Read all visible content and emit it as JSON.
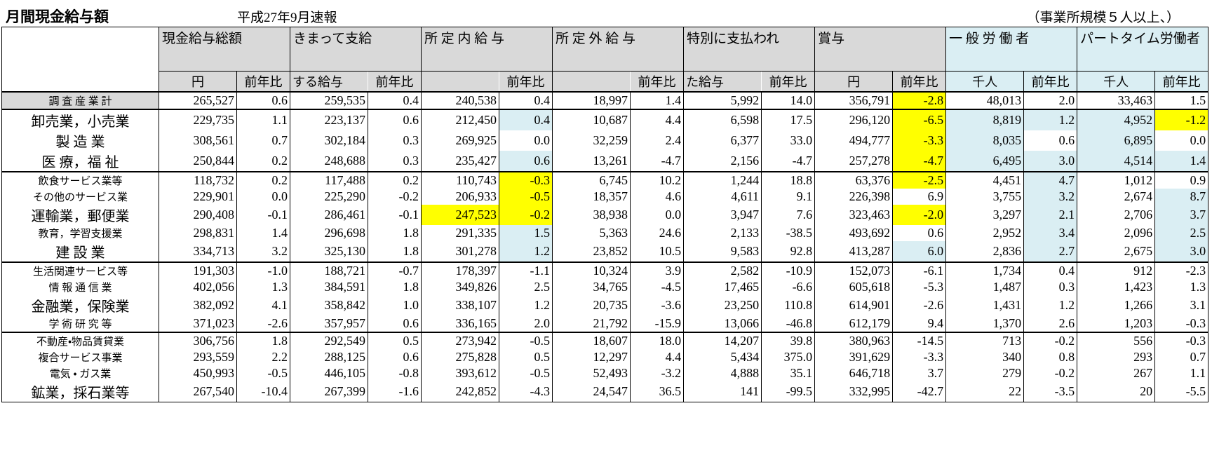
{
  "header": {
    "title": "月間現金給与額",
    "subtitle": "平成27年9月速報",
    "note": "（事業所規模５人以上、）"
  },
  "table": {
    "group_headers": [
      "現金給与総額",
      "きまって支給",
      "所 定 内 給 与",
      "所 定 外 給 与",
      "特別に支払われ",
      "賞与",
      "一 般 労 働 者",
      "パートタイム労働者"
    ],
    "group_colors": [
      "#d9d9d9",
      "#d9d9d9",
      "#d9d9d9",
      "#d9d9d9",
      "#d9d9d9",
      "#d9d9d9",
      "#daeef3",
      "#daeef3"
    ],
    "sub_headers": [
      "円",
      "前年比",
      "する給与",
      "前年比",
      null,
      "前年比",
      null,
      "前年比",
      "た給与",
      "前年比",
      "円",
      "前年比",
      "千人",
      "前年比",
      "千人",
      "前年比"
    ],
    "sections": [
      {
        "rows": [
          {
            "label": "調 査 産 業 計",
            "label_color": "#d9d9d9",
            "cells": [
              "265,527",
              "0.6",
              "259,535",
              "0.4",
              "240,538",
              "0.4",
              "18,997",
              "1.4",
              "5,992",
              "14.0",
              "356,791",
              "-2.8",
              "48,013",
              "2.0",
              "33,463",
              "1.5"
            ],
            "colors": {
              "11": "#ffff00"
            }
          }
        ]
      },
      {
        "rows": [
          {
            "label": "卸売業，小売業",
            "cells": [
              "229,735",
              "1.1",
              "223,137",
              "0.6",
              "212,450",
              "0.4",
              "10,687",
              "4.4",
              "6,598",
              "17.5",
              "296,120",
              "-6.5",
              "8,819",
              "1.2",
              "4,952",
              "-1.2"
            ],
            "colors": {
              "5": "#daeef3",
              "11": "#ffff00",
              "12": "#daeef3",
              "13": "#daeef3",
              "14": "#daeef3",
              "15": "#ffff00"
            }
          },
          {
            "label": "製 造 業",
            "cells": [
              "308,561",
              "0.7",
              "302,184",
              "0.3",
              "269,925",
              "0.0",
              "32,259",
              "2.4",
              "6,377",
              "33.0",
              "494,777",
              "-3.3",
              "8,035",
              "0.6",
              "6,895",
              "0.0"
            ],
            "colors": {
              "11": "#ffff00",
              "12": "#daeef3",
              "14": "#daeef3"
            }
          },
          {
            "label": "医 療，福 祉",
            "cells": [
              "250,844",
              "0.2",
              "248,688",
              "0.3",
              "235,427",
              "0.6",
              "13,261",
              "-4.7",
              "2,156",
              "-4.7",
              "257,278",
              "-4.7",
              "6,495",
              "3.0",
              "4,514",
              "1.4"
            ],
            "colors": {
              "5": "#daeef3",
              "11": "#ffff00",
              "12": "#daeef3",
              "13": "#daeef3",
              "14": "#daeef3",
              "15": "#daeef3"
            }
          }
        ]
      },
      {
        "rows": [
          {
            "label": "飲食サービス業等",
            "cells": [
              "118,732",
              "0.2",
              "117,488",
              "0.2",
              "110,743",
              "-0.3",
              "6,745",
              "10.2",
              "1,244",
              "18.8",
              "63,376",
              "-2.5",
              "4,451",
              "4.7",
              "1,012",
              "0.9"
            ],
            "colors": {
              "5": "#ffff00",
              "11": "#ffff00",
              "13": "#daeef3"
            }
          },
          {
            "label": "その他のサービス業",
            "cells": [
              "229,901",
              "0.0",
              "225,290",
              "-0.2",
              "206,933",
              "-0.5",
              "18,357",
              "4.6",
              "4,611",
              "9.1",
              "226,398",
              "6.9",
              "3,755",
              "3.2",
              "2,674",
              "8.7"
            ],
            "colors": {
              "5": "#ffff00",
              "13": "#daeef3",
              "15": "#daeef3"
            }
          },
          {
            "label": "運輸業，郵便業",
            "cells": [
              "290,408",
              "-0.1",
              "286,461",
              "-0.1",
              "247,523",
              "-0.2",
              "38,938",
              "0.0",
              "3,947",
              "7.6",
              "323,463",
              "-2.0",
              "3,297",
              "2.1",
              "2,706",
              "3.7"
            ],
            "colors": {
              "4": "#ffff00",
              "5": "#ffff00",
              "11": "#ffff00",
              "13": "#daeef3",
              "15": "#daeef3"
            }
          },
          {
            "label": "教育，学習支援業",
            "cells": [
              "298,831",
              "1.4",
              "296,698",
              "1.8",
              "291,335",
              "1.5",
              "5,363",
              "24.6",
              "2,133",
              "-38.5",
              "493,692",
              "0.6",
              "2,952",
              "3.4",
              "2,096",
              "2.5"
            ],
            "colors": {
              "5": "#daeef3",
              "13": "#daeef3",
              "15": "#daeef3"
            }
          },
          {
            "label": "建 設 業",
            "cells": [
              "334,713",
              "3.2",
              "325,130",
              "1.8",
              "301,278",
              "1.2",
              "23,852",
              "10.5",
              "9,583",
              "92.8",
              "413,287",
              "6.0",
              "2,836",
              "2.7",
              "2,675",
              "3.0"
            ],
            "colors": {
              "5": "#daeef3",
              "11": "#daeef3",
              "13": "#daeef3",
              "15": "#daeef3"
            }
          }
        ]
      },
      {
        "rows": [
          {
            "label": "生活関連サービス等",
            "cells": [
              "191,303",
              "-1.0",
              "188,721",
              "-0.7",
              "178,397",
              "-1.1",
              "10,324",
              "3.9",
              "2,582",
              "-10.9",
              "152,073",
              "-6.1",
              "1,734",
              "0.4",
              "912",
              "-2.3"
            ]
          },
          {
            "label": "情 報 通 信 業",
            "cells": [
              "402,056",
              "1.3",
              "384,591",
              "1.8",
              "349,826",
              "2.5",
              "34,765",
              "-4.5",
              "17,465",
              "-6.6",
              "605,618",
              "-5.3",
              "1,487",
              "0.3",
              "1,423",
              "1.3"
            ]
          },
          {
            "label": "金融業，保険業",
            "cells": [
              "382,092",
              "4.1",
              "358,842",
              "1.0",
              "338,107",
              "1.2",
              "20,735",
              "-3.6",
              "23,250",
              "110.8",
              "614,901",
              "-2.6",
              "1,431",
              "1.2",
              "1,266",
              "3.1"
            ]
          },
          {
            "label": "学 術 研 究 等",
            "cells": [
              "371,023",
              "-2.6",
              "357,957",
              "0.6",
              "336,165",
              "2.0",
              "21,792",
              "-15.9",
              "13,066",
              "-46.8",
              "612,179",
              "9.4",
              "1,370",
              "2.6",
              "1,203",
              "-0.3"
            ]
          }
        ]
      },
      {
        "rows": [
          {
            "label": "不動産・物品賃貸業",
            "cells": [
              "306,756",
              "1.8",
              "292,549",
              "0.5",
              "273,942",
              "-0.5",
              "18,607",
              "18.0",
              "14,207",
              "39.8",
              "380,963",
              "-14.5",
              "713",
              "-0.2",
              "556",
              "-0.3"
            ]
          },
          {
            "label": "複合サービス事業",
            "cells": [
              "293,559",
              "2.2",
              "288,125",
              "0.6",
              "275,828",
              "0.5",
              "12,297",
              "4.4",
              "5,434",
              "375.0",
              "391,629",
              "-3.3",
              "340",
              "0.8",
              "293",
              "0.7"
            ]
          },
          {
            "label": "電気 ・ ガス業",
            "cells": [
              "450,993",
              "-0.5",
              "446,105",
              "-0.8",
              "393,612",
              "-0.5",
              "52,493",
              "-3.2",
              "4,888",
              "35.1",
              "646,718",
              "3.7",
              "279",
              "-0.2",
              "267",
              "1.1"
            ]
          },
          {
            "label": "鉱業，採石業等",
            "cells": [
              "267,540",
              "-10.4",
              "267,399",
              "-1.6",
              "242,852",
              "-4.3",
              "24,547",
              "36.5",
              "141",
              "-99.5",
              "332,995",
              "-42.7",
              "22",
              "-3.5",
              "20",
              "-5.5"
            ]
          }
        ]
      }
    ]
  }
}
